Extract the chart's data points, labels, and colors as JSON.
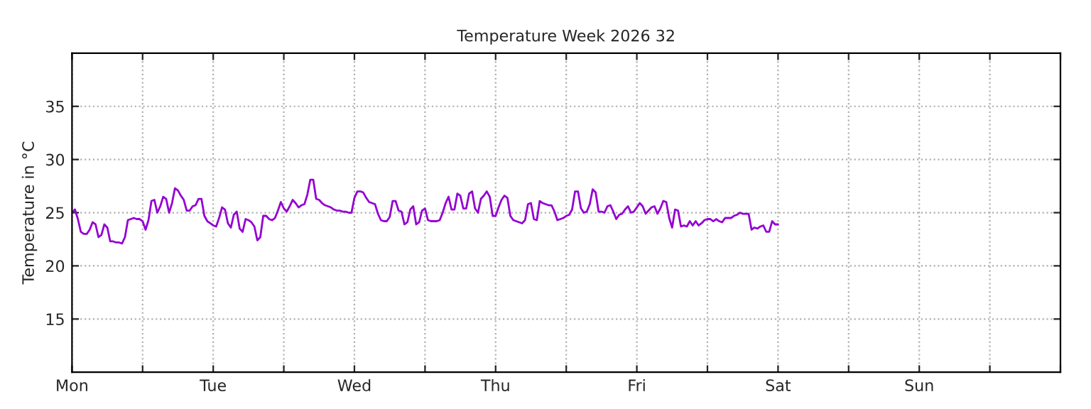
{
  "chart_data": {
    "type": "line",
    "title": "Temperature Week 2026 32",
    "ylabel": "Temperature in °C",
    "ylim": [
      10,
      40
    ],
    "yticks": [
      15,
      20,
      25,
      30,
      35
    ],
    "categories": [
      "Mon",
      null,
      null,
      null,
      null,
      null,
      null,
      null,
      null,
      null,
      null,
      null,
      null,
      null,
      null,
      null,
      null,
      null,
      null,
      null,
      null,
      null,
      null,
      null,
      null,
      null,
      null,
      null,
      null,
      null,
      null,
      null,
      null,
      null,
      null,
      null,
      null,
      null,
      null,
      null,
      null,
      null,
      null,
      null,
      null,
      null,
      null,
      null,
      "Tue",
      null,
      null,
      null,
      null,
      null,
      null,
      null,
      null,
      null,
      null,
      null,
      null,
      null,
      null,
      null,
      null,
      null,
      null,
      null,
      null,
      null,
      null,
      null,
      null,
      null,
      null,
      null,
      null,
      null,
      null,
      null,
      null,
      null,
      null,
      null,
      null,
      null,
      null,
      null,
      null,
      null,
      null,
      null,
      null,
      null,
      null,
      null,
      "Wed",
      null,
      null,
      null,
      null,
      null,
      null,
      null,
      null,
      null,
      null,
      null,
      null,
      null,
      null,
      null,
      null,
      null,
      null,
      null,
      null,
      null,
      null,
      null,
      null,
      null,
      null,
      null,
      null,
      null,
      null,
      null,
      null,
      null,
      null,
      null,
      null,
      null,
      null,
      null,
      null,
      null,
      null,
      null,
      null,
      null,
      null,
      null,
      "Thu",
      null,
      null,
      null,
      null,
      null,
      null,
      null,
      null,
      null,
      null,
      null,
      null,
      null,
      null,
      null,
      null,
      null,
      null,
      null,
      null,
      null,
      null,
      null,
      null,
      null,
      null,
      null,
      null,
      null,
      null,
      null,
      null,
      null,
      null,
      null,
      null,
      null,
      null,
      null,
      null,
      null,
      null,
      null,
      null,
      null,
      null,
      null,
      "Fri",
      null,
      null,
      null,
      null,
      null,
      null,
      null,
      null,
      null,
      null,
      null,
      null,
      null,
      null,
      null,
      null,
      null,
      null,
      null,
      null,
      null,
      null,
      null,
      null,
      null,
      null,
      null,
      null,
      null,
      null,
      null,
      null,
      null,
      null,
      null,
      null,
      null,
      null,
      null,
      null,
      null,
      null,
      null,
      null,
      null,
      null,
      null,
      "Sat",
      null,
      null,
      null,
      null,
      null,
      null,
      null,
      null,
      null,
      null,
      null,
      null,
      null,
      null,
      null,
      null,
      null,
      null,
      null,
      null,
      null,
      null,
      null,
      null,
      null,
      null,
      null,
      null,
      null,
      null,
      null,
      null,
      null,
      null,
      null,
      null,
      null,
      null,
      null,
      null,
      null,
      null,
      null,
      null,
      null,
      null,
      null,
      "Sun",
      null,
      null,
      null,
      null,
      null,
      null,
      null,
      null,
      null,
      null,
      null,
      null,
      null,
      null,
      null,
      null,
      null,
      null,
      null,
      null,
      null,
      null,
      null,
      null,
      null,
      null,
      null,
      null,
      null,
      null,
      null,
      null,
      null,
      null,
      null,
      null,
      null,
      null,
      null,
      null,
      null,
      null,
      null,
      null,
      null,
      null,
      null,
      null
    ],
    "grid": true,
    "line_style": "solid",
    "series": [
      {
        "color": "#9400d3",
        "values": [
          25.0,
          25.3,
          24.4,
          23.2,
          23.0,
          23.0,
          23.4,
          24.1,
          23.9,
          22.7,
          22.9,
          23.9,
          23.6,
          22.3,
          22.3,
          22.2,
          22.2,
          22.1,
          22.7,
          24.3,
          24.4,
          24.5,
          24.4,
          24.4,
          24.2,
          23.4,
          24.3,
          26.1,
          26.2,
          25.0,
          25.6,
          26.5,
          26.3,
          25.0,
          25.9,
          27.3,
          27.1,
          26.6,
          26.2,
          25.2,
          25.2,
          25.6,
          25.7,
          26.3,
          26.3,
          24.7,
          24.2,
          24.0,
          23.8,
          23.7,
          24.5,
          25.5,
          25.3,
          24.0,
          23.6,
          24.8,
          25.1,
          23.5,
          23.2,
          24.4,
          24.3,
          24.1,
          23.7,
          22.4,
          22.7,
          24.7,
          24.7,
          24.4,
          24.3,
          24.5,
          25.2,
          26.0,
          25.4,
          25.1,
          25.6,
          26.2,
          25.9,
          25.5,
          25.7,
          25.8,
          26.7,
          28.1,
          28.1,
          26.3,
          26.2,
          25.9,
          25.7,
          25.6,
          25.5,
          25.3,
          25.2,
          25.2,
          25.1,
          25.1,
          25.0,
          25.0,
          26.4,
          27.0,
          27.0,
          26.9,
          26.4,
          26.0,
          25.9,
          25.8,
          24.9,
          24.3,
          24.2,
          24.2,
          24.6,
          26.1,
          26.1,
          25.2,
          25.1,
          23.9,
          24.1,
          25.3,
          25.6,
          23.9,
          24.1,
          25.2,
          25.4,
          24.3,
          24.2,
          24.2,
          24.2,
          24.3,
          25.0,
          25.9,
          26.5,
          25.3,
          25.3,
          26.8,
          26.6,
          25.4,
          25.4,
          26.8,
          27.0,
          25.4,
          25.0,
          26.3,
          26.6,
          27.0,
          26.5,
          24.7,
          24.7,
          25.5,
          26.2,
          26.6,
          26.4,
          24.7,
          24.3,
          24.2,
          24.1,
          24.0,
          24.3,
          25.8,
          25.9,
          24.4,
          24.3,
          26.1,
          25.9,
          25.8,
          25.7,
          25.7,
          25.1,
          24.3,
          24.4,
          24.5,
          24.7,
          24.8,
          25.3,
          27.0,
          27.0,
          25.4,
          25.0,
          25.1,
          25.8,
          27.2,
          26.9,
          25.1,
          25.1,
          25.0,
          25.6,
          25.7,
          25.1,
          24.4,
          24.8,
          24.9,
          25.3,
          25.6,
          25.0,
          25.1,
          25.5,
          25.9,
          25.6,
          24.9,
          25.2,
          25.5,
          25.6,
          24.9,
          25.4,
          26.1,
          26.0,
          24.5,
          23.6,
          25.3,
          25.2,
          23.7,
          23.8,
          23.7,
          24.2,
          23.8,
          24.2,
          23.8,
          24.0,
          24.3,
          24.4,
          24.4,
          24.2,
          24.4,
          24.2,
          24.1,
          24.5,
          24.5,
          24.5,
          24.7,
          24.8,
          25.0,
          24.9,
          24.9,
          24.9,
          23.4,
          23.6,
          23.5,
          23.7,
          23.8,
          23.2,
          23.2,
          24.2,
          23.9,
          23.9,
          null,
          null,
          null,
          null,
          null,
          null,
          null,
          null,
          null,
          null,
          null,
          null,
          null,
          null,
          null,
          null,
          null,
          null,
          null,
          null,
          null,
          null,
          null,
          null,
          null,
          null,
          null,
          null,
          null,
          null,
          null,
          null,
          null,
          null,
          null,
          null,
          null,
          null,
          null,
          null,
          null,
          null,
          null,
          null,
          null,
          null,
          null,
          null,
          null,
          null,
          null,
          null,
          null,
          null,
          null,
          null,
          null,
          null,
          null,
          null,
          null,
          null,
          null,
          null,
          null,
          null,
          null,
          null,
          null,
          null,
          null,
          null,
          null,
          null,
          null,
          null,
          null,
          null,
          null,
          null,
          null,
          null,
          null,
          null,
          null,
          null,
          null,
          null,
          null,
          null,
          null,
          null,
          null,
          null,
          null,
          null
        ]
      }
    ]
  }
}
